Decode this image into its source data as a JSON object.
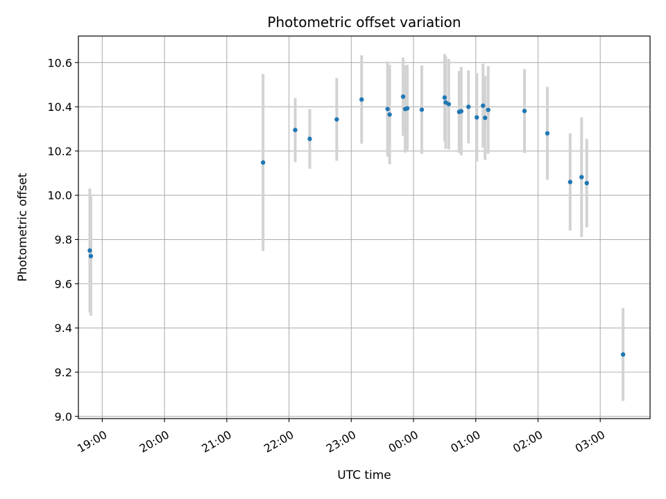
{
  "chart_data": {
    "type": "scatter",
    "title": "Photometric offset variation",
    "xlabel": "UTC time",
    "ylabel": "Photometric offset",
    "grid": true,
    "x_tick_labels": [
      "19:00",
      "20:00",
      "21:00",
      "22:00",
      "23:00",
      "00:00",
      "01:00",
      "02:00",
      "03:00"
    ],
    "y_ticks": [
      9.0,
      9.2,
      9.4,
      9.6,
      9.8,
      10.0,
      10.2,
      10.4,
      10.6
    ],
    "y_tick_labels": [
      "9.0",
      "9.2",
      "9.4",
      "9.6",
      "9.8",
      "10.0",
      "10.2",
      "10.4",
      "10.6"
    ],
    "xlim": [
      "18:37",
      "03:48"
    ],
    "ylim": [
      8.99,
      10.72
    ],
    "point_color": "#1f77b4",
    "errorbar_color": "#d3d3d3",
    "points": [
      {
        "x": "18:48",
        "y": 9.75,
        "err": 0.28
      },
      {
        "x": "18:49",
        "y": 9.725,
        "err": 0.27
      },
      {
        "x": "21:35",
        "y": 10.148,
        "err": 0.4
      },
      {
        "x": "22:06",
        "y": 10.295,
        "err": 0.145
      },
      {
        "x": "22:20",
        "y": 10.255,
        "err": 0.135
      },
      {
        "x": "22:46",
        "y": 10.343,
        "err": 0.187
      },
      {
        "x": "23:10",
        "y": 10.433,
        "err": 0.2
      },
      {
        "x": "23:35",
        "y": 10.39,
        "err": 0.215
      },
      {
        "x": "23:37",
        "y": 10.365,
        "err": 0.225
      },
      {
        "x": "23:50",
        "y": 10.446,
        "err": 0.177
      },
      {
        "x": "23:52",
        "y": 10.39,
        "err": 0.197
      },
      {
        "x": "23:54",
        "y": 10.393,
        "err": 0.197
      },
      {
        "x": "00:08",
        "y": 10.387,
        "err": 0.2
      },
      {
        "x": "00:30",
        "y": 10.442,
        "err": 0.197
      },
      {
        "x": "00:31",
        "y": 10.42,
        "err": 0.21
      },
      {
        "x": "00:34",
        "y": 10.412,
        "err": 0.205
      },
      {
        "x": "00:44",
        "y": 10.377,
        "err": 0.185
      },
      {
        "x": "00:46",
        "y": 10.38,
        "err": 0.2
      },
      {
        "x": "00:53",
        "y": 10.4,
        "err": 0.165
      },
      {
        "x": "01:01",
        "y": 10.352,
        "err": 0.2
      },
      {
        "x": "01:07",
        "y": 10.405,
        "err": 0.19
      },
      {
        "x": "01:09",
        "y": 10.35,
        "err": 0.19
      },
      {
        "x": "01:12",
        "y": 10.386,
        "err": 0.198
      },
      {
        "x": "01:47",
        "y": 10.381,
        "err": 0.19
      },
      {
        "x": "02:09",
        "y": 10.28,
        "err": 0.21
      },
      {
        "x": "02:31",
        "y": 10.06,
        "err": 0.22
      },
      {
        "x": "02:42",
        "y": 10.082,
        "err": 0.27
      },
      {
        "x": "02:47",
        "y": 10.055,
        "err": 0.2
      },
      {
        "x": "03:22",
        "y": 9.28,
        "err": 0.21
      }
    ]
  }
}
